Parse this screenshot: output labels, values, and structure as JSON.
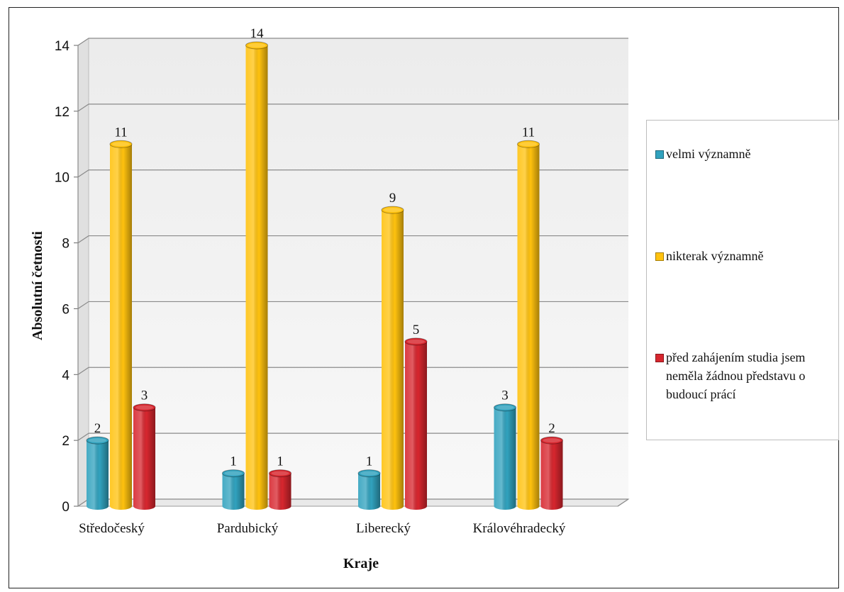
{
  "chart_data": {
    "type": "bar",
    "title": "",
    "xlabel": "Kraje",
    "ylabel": "Absolutní četnosti",
    "categories": [
      "Středočeský",
      "Pardubický",
      "Liberecký",
      "Královéhradecký"
    ],
    "series": [
      {
        "name": "velmi významně",
        "values": [
          2,
          1,
          1,
          3
        ],
        "color": "#31A2BE"
      },
      {
        "name": "nikterak významně",
        "values": [
          11,
          14,
          9,
          11
        ],
        "color": "#FFC20E"
      },
      {
        "name": "před zahájením studia jsem neměla žádnou představu o budoucí prácí",
        "values": [
          3,
          1,
          5,
          2
        ],
        "color": "#D7262E"
      }
    ],
    "ylim": [
      0,
      14
    ],
    "yticks": [
      0,
      2,
      4,
      6,
      8,
      10,
      12,
      14
    ],
    "grid": true,
    "legend": "right"
  }
}
